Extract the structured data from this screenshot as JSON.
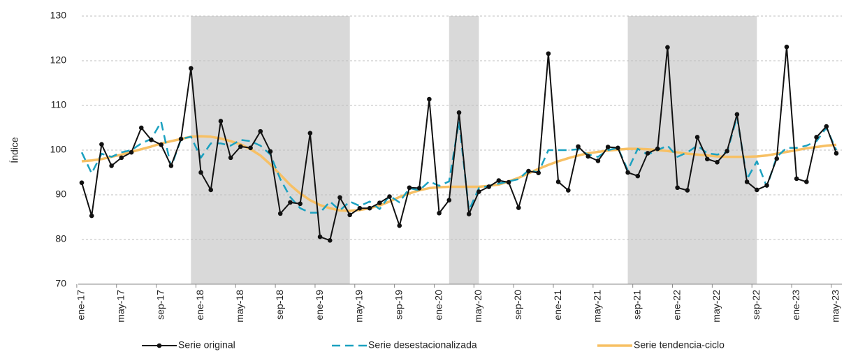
{
  "chart_data": {
    "type": "line",
    "y_label": "Índice",
    "categories": [
      "ene-17",
      null,
      null,
      null,
      "may-17",
      null,
      null,
      null,
      "sep-17",
      null,
      null,
      null,
      "ene-18",
      null,
      null,
      null,
      "may-18",
      null,
      null,
      null,
      "sep-18",
      null,
      null,
      null,
      "ene-19",
      null,
      null,
      null,
      "may-19",
      null,
      null,
      null,
      "sep-19",
      null,
      null,
      null,
      "ene-20",
      null,
      null,
      null,
      "may-20",
      null,
      null,
      null,
      "sep-20",
      null,
      null,
      null,
      "ene-21",
      null,
      null,
      null,
      "may-21",
      null,
      null,
      null,
      "sep-21",
      null,
      null,
      null,
      "ene-22",
      null,
      null,
      null,
      "may-22",
      null,
      null,
      null,
      "sep-22",
      null,
      null,
      null,
      "ene-23",
      null,
      null,
      null,
      "may-23"
    ],
    "series": [
      {
        "name": "Serie original",
        "color": "#111111",
        "style": "solid-markers",
        "values": [
          92.7,
          85.3,
          101.3,
          96.5,
          98.3,
          99.5,
          105,
          102.3,
          101.2,
          96.5,
          102.5,
          118.3,
          95,
          91.1,
          106.5,
          98.3,
          100.8,
          100.5,
          104.2,
          99.7,
          85.8,
          88.3,
          88,
          103.8,
          80.6,
          79.8,
          89.4,
          85.5,
          87,
          87,
          88.2,
          89.6,
          83.1,
          91.6,
          91.5,
          111.4,
          85.9,
          88.8,
          108.4,
          85.7,
          90.7,
          91.8,
          93.2,
          92.8,
          87.1,
          95.3,
          94.9,
          121.6,
          92.9,
          91,
          100.8,
          98.6,
          97.6,
          100.7,
          100.5,
          95,
          94.2,
          99.3,
          100.3,
          123,
          91.6,
          91,
          102.9,
          98,
          97.3,
          99.8,
          108,
          92.9,
          91.1,
          92.1,
          98.1,
          123.1,
          93.6,
          92.9,
          102.9,
          105.3,
          99.3
        ]
      },
      {
        "name": "Serie desestacionalizada",
        "color": "#1ba1c0",
        "style": "dashed",
        "values": [
          99.5,
          94.8,
          99.2,
          98.5,
          99.5,
          100,
          101.5,
          102.5,
          106.3,
          96.2,
          102.5,
          103,
          98.3,
          101.5,
          101.5,
          101,
          102.3,
          102,
          101,
          99,
          93.5,
          89.5,
          87,
          86,
          86,
          88.5,
          86.5,
          88.5,
          87.5,
          88.5,
          86.8,
          89.8,
          88.3,
          91.5,
          91,
          93,
          92,
          93,
          106.5,
          86.5,
          91.5,
          92,
          92.5,
          93,
          93.5,
          95.5,
          95,
          100,
          100,
          100,
          100.2,
          99,
          98.5,
          100,
          100.5,
          95.5,
          100.3,
          99,
          100,
          101,
          98.5,
          99.5,
          101,
          99.3,
          99,
          99.5,
          107.5,
          93.5,
          97.5,
          91.8,
          98.5,
          100.5,
          100.5,
          101,
          102,
          105,
          100
        ]
      },
      {
        "name": "Serie tendencia-ciclo",
        "color": "#f7c064",
        "style": "thick",
        "values": [
          97.5,
          97.7,
          98,
          98.5,
          99,
          99.6,
          100.2,
          100.8,
          101.5,
          102,
          102.5,
          103,
          103.1,
          103,
          102.6,
          102,
          101.3,
          100.2,
          98.8,
          96.8,
          94.5,
          92.2,
          90.3,
          88.8,
          87.7,
          87,
          86.5,
          86.4,
          86.6,
          87,
          87.6,
          88.5,
          89.5,
          90.3,
          91,
          91.5,
          91.7,
          91.8,
          91.8,
          91.8,
          91.8,
          92,
          92.3,
          93,
          93.8,
          94.8,
          95.8,
          96.7,
          97.5,
          98.2,
          98.8,
          99.3,
          99.6,
          99.9,
          100.1,
          100.3,
          100.3,
          100.2,
          100,
          99.8,
          99.5,
          99.2,
          99,
          98.8,
          98.6,
          98.5,
          98.5,
          98.5,
          98.6,
          98.8,
          99.2,
          99.6,
          100,
          100.4,
          100.7,
          101,
          101.2
        ]
      }
    ],
    "shaded_periods": [
      [
        11,
        27
      ],
      [
        37,
        40
      ],
      [
        55,
        68
      ]
    ],
    "shade_color": "#d9d9d9",
    "ylim": [
      70,
      130
    ],
    "yticks": [
      70,
      80,
      90,
      100,
      110,
      120,
      130
    ],
    "grid": true,
    "legend": "bottom"
  }
}
